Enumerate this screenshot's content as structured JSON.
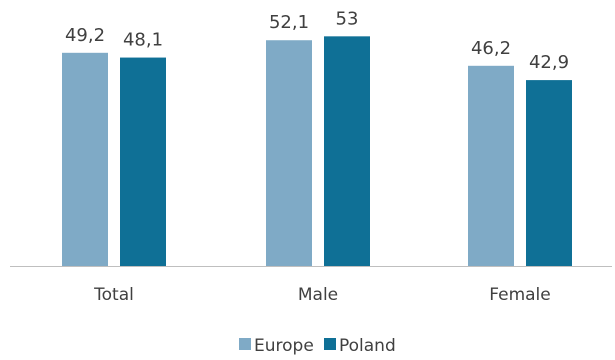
{
  "chart_data": {
    "type": "bar",
    "categories": [
      "Total",
      "Male",
      "Female"
    ],
    "series": [
      {
        "name": "Europe",
        "values": [
          49.2,
          52.1,
          46.2
        ],
        "labels": [
          "49,2",
          "52,1",
          "46,2"
        ],
        "color": "#7faac6"
      },
      {
        "name": "Poland",
        "values": [
          48.1,
          53,
          42.9
        ],
        "labels": [
          "48,1",
          "53",
          "42,9"
        ],
        "color": "#0f7096"
      }
    ],
    "ylim": [
      0,
      60
    ],
    "grid": false,
    "legend_position": "bottom",
    "axis_color": "#bfbfbf"
  }
}
